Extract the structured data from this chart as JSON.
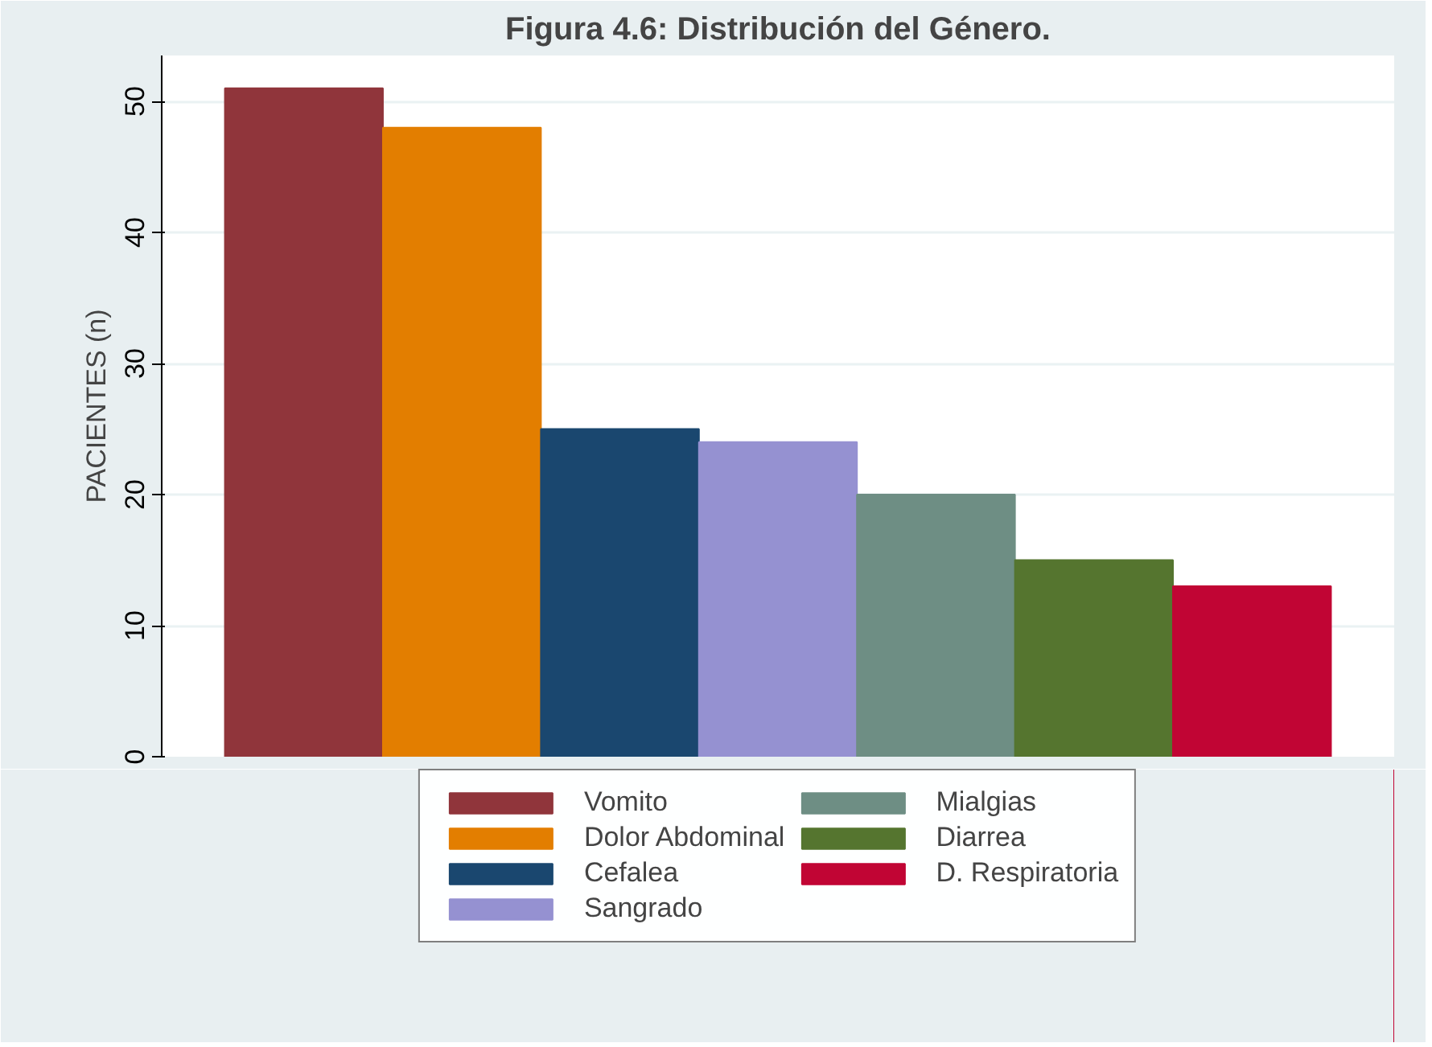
{
  "chart_data": {
    "type": "bar",
    "title": "Figura 4.6: Distribución del Género.",
    "ylabel": "PACIENTES (n)",
    "categories": [
      null
    ],
    "series": [
      {
        "name": "Vomito",
        "color": "#90353b",
        "values": [
          51
        ]
      },
      {
        "name": "Dolor Abdominal",
        "color": "#e37e00",
        "values": [
          48
        ]
      },
      {
        "name": "Cefalea",
        "color": "#1a476f",
        "values": [
          25
        ]
      },
      {
        "name": "Sangrado",
        "color": "#9591d1",
        "values": [
          24
        ]
      },
      {
        "name": "Mialgias",
        "color": "#6e8e84",
        "values": [
          20
        ]
      },
      {
        "name": "Diarrea",
        "color": "#55752f",
        "values": [
          15
        ]
      },
      {
        "name": "D. Respiratoria",
        "color": "#c10534",
        "values": [
          13
        ]
      }
    ],
    "ylim": [
      0,
      53.5
    ],
    "yticks": [
      0,
      10,
      20,
      30,
      40,
      50
    ],
    "grid": "y",
    "legend": "bottom"
  }
}
